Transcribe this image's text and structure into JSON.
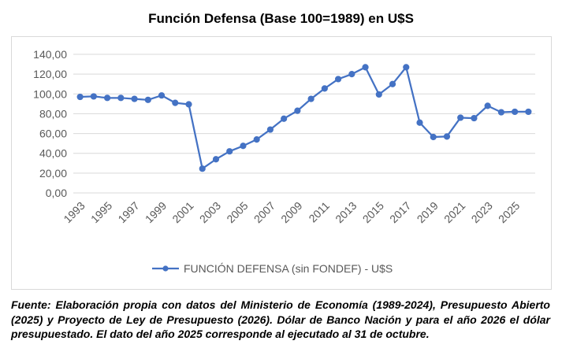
{
  "chart_data": {
    "type": "line",
    "title": "Función Defensa (Base 100=1989) en U$S",
    "xlabel": "",
    "ylabel": "",
    "ylim": [
      0,
      140
    ],
    "yticks": [
      "0,00",
      "20,00",
      "40,00",
      "60,00",
      "80,00",
      "100,00",
      "120,00",
      "140,00"
    ],
    "xtick_labels": [
      "1993",
      "1995",
      "1997",
      "1999",
      "2001",
      "2003",
      "2005",
      "2007",
      "2009",
      "2011",
      "2013",
      "2015",
      "2017",
      "2019",
      "2021",
      "2023",
      "2025"
    ],
    "x": [
      1993,
      1994,
      1995,
      1996,
      1997,
      1998,
      1999,
      2000,
      2001,
      2002,
      2003,
      2004,
      2005,
      2006,
      2007,
      2008,
      2009,
      2010,
      2011,
      2012,
      2013,
      2014,
      2015,
      2016,
      2017,
      2018,
      2019,
      2020,
      2021,
      2022,
      2023,
      2024,
      2025,
      2026
    ],
    "grid": true,
    "legend_position": "bottom",
    "series": [
      {
        "name": "FUNCIÓN DEFENSA (sin FONDEF) - U$S",
        "color": "#4472c4",
        "values": [
          97,
          97.5,
          96,
          96,
          95,
          94,
          98.5,
          91,
          89.5,
          24.5,
          34,
          42,
          47.5,
          54,
          64,
          75,
          83,
          95,
          105.5,
          115,
          120,
          127,
          99.5,
          110,
          127,
          71,
          56.5,
          57,
          76,
          75.5,
          88,
          81.5,
          82,
          82
        ]
      }
    ]
  },
  "source": {
    "label": "Fuente:",
    "text": " Elaboración propia con datos del Ministerio de Economía (1989-2024), Presupuesto Abierto (2025) y Proyecto de Ley de Presupuesto (2026). Dólar de Banco Nación y para el año 2026 el dólar presupuestado. El dato del año 2025 corresponde al ejecutado al 31 de octubre."
  }
}
